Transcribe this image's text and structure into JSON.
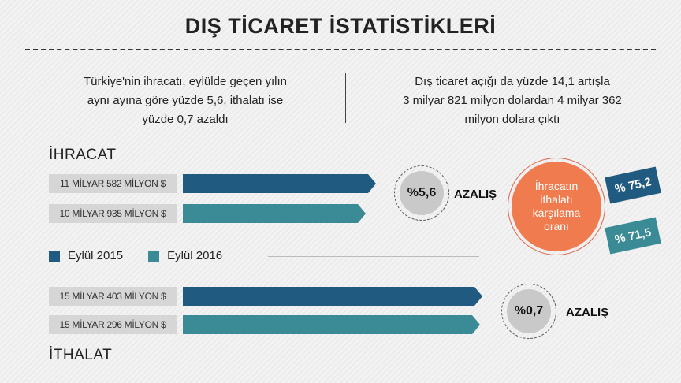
{
  "header": {
    "title": "DIŞ TİCARET İSTATİSTİKLERİ"
  },
  "summary": {
    "left": [
      "Türkiye'nin ihracatı, eylülde geçen yılın",
      "aynı ayına göre yüzde 5,6, ithalatı ise",
      "yüzde 0,7 azaldı"
    ],
    "right": [
      "Dış ticaret açığı da yüzde 14,1 artışla",
      "3 milyar 821 milyon dolardan 4 milyar 362",
      "milyon dolara çıktı"
    ]
  },
  "colors": {
    "eylul_2015": "#215a80",
    "eylul_2016": "#3a8b96",
    "accent": "#f07b4e"
  },
  "chart_data": {
    "type": "bar",
    "categories": [
      "İHRACAT",
      "İTHALAT"
    ],
    "unit": "milyar $",
    "series": [
      {
        "name": "Eylül 2015",
        "values": [
          11.582,
          15.403
        ],
        "labels": [
          "11 MİLYAR 582 MİLYON $",
          "15 MİLYAR 403 MİLYON $"
        ]
      },
      {
        "name": "Eylül 2016",
        "values": [
          10.935,
          15.296
        ],
        "labels": [
          "10 MİLYAR 935 MİLYON $",
          "15 MİLYAR 296 MİLYON $"
        ]
      }
    ],
    "changes": [
      {
        "value": "%5,6",
        "label": "AZALIŞ"
      },
      {
        "value": "%0,7",
        "label": "AZALIŞ"
      }
    ],
    "legend": [
      "Eylül 2015",
      "Eylül 2016"
    ]
  },
  "coverage": {
    "title_lines": [
      "İhracatın",
      "ithalatı",
      "karşılama",
      "oranı"
    ],
    "eylul_2015": "% 75,2",
    "eylul_2016": "% 71,5"
  }
}
